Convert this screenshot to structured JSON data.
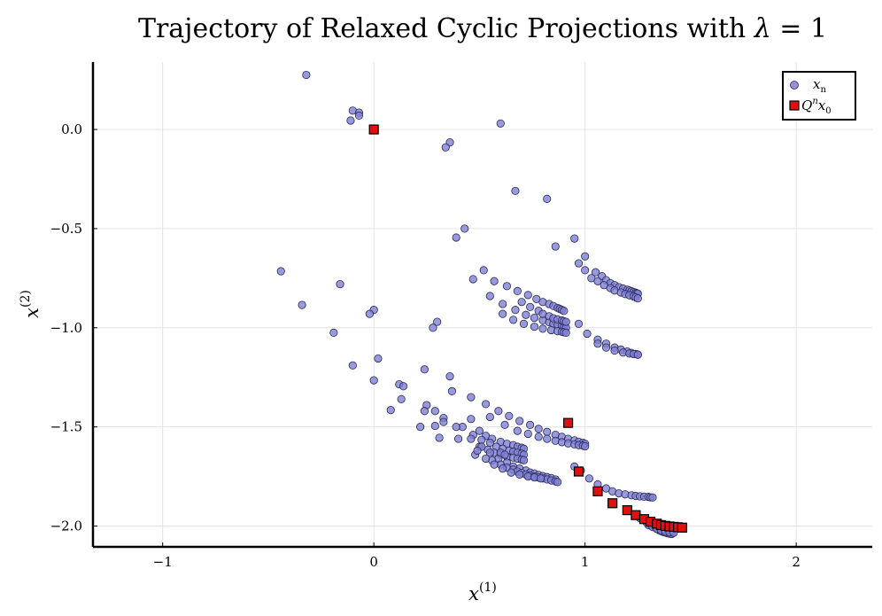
{
  "chart_data": {
    "type": "scatter",
    "title": "Trajectory of Relaxed Cyclic Projections with λ = 1",
    "title_main": "Trajectory of Relaxed Cyclic Projections with ",
    "title_lambda": "λ",
    "title_eq": " = 1",
    "xlabel": "x",
    "xlabel_sup": "(1)",
    "ylabel": "x",
    "ylabel_sup": "(2)",
    "xlim": [
      -1.33,
      2.36
    ],
    "ylim": [
      -2.105,
      0.34
    ],
    "grid": true,
    "legend_position": "top-right",
    "xticks": [
      -1,
      0,
      1,
      2
    ],
    "xtick_labels": [
      "−1",
      "0",
      "1",
      "2"
    ],
    "yticks": [
      0.0,
      -0.5,
      -1.0,
      -1.5,
      -2.0
    ],
    "ytick_labels": [
      "0.0",
      "−0.5",
      "−1.0",
      "−1.5",
      "−2.0"
    ],
    "series": [
      {
        "name": "x_n",
        "legend_label": "x",
        "legend_sub": "n",
        "marker": "circle",
        "color": "#7f7fd4",
        "edge": "#2a2a55",
        "points": [
          [
            -0.32,
            0.275
          ],
          [
            -0.1,
            0.095
          ],
          [
            -0.07,
            0.085
          ],
          [
            -0.11,
            0.045
          ],
          [
            -0.07,
            0.07
          ],
          [
            0.6,
            0.03
          ],
          [
            0.36,
            -0.065
          ],
          [
            0.34,
            -0.09
          ],
          [
            0.67,
            -0.31
          ],
          [
            0.82,
            -0.35
          ],
          [
            0.43,
            -0.5
          ],
          [
            0.39,
            -0.545
          ],
          [
            0.95,
            -0.55
          ],
          [
            0.86,
            -0.59
          ],
          [
            1.0,
            -0.64
          ],
          [
            0.97,
            -0.675
          ],
          [
            -0.44,
            -0.715
          ],
          [
            -0.16,
            -0.78
          ],
          [
            -0.34,
            -0.885
          ],
          [
            0.0,
            -0.91
          ],
          [
            -0.02,
            -0.93
          ],
          [
            0.3,
            -0.97
          ],
          [
            0.28,
            -1.0
          ],
          [
            -0.19,
            -1.025
          ],
          [
            0.02,
            -1.155
          ],
          [
            -0.1,
            -1.19
          ],
          [
            0.24,
            -1.21
          ],
          [
            0.0,
            -1.265
          ],
          [
            0.12,
            -1.285
          ],
          [
            0.14,
            -1.295
          ],
          [
            0.36,
            -1.245
          ],
          [
            0.37,
            -1.32
          ],
          [
            0.13,
            -1.36
          ],
          [
            0.25,
            -1.39
          ],
          [
            0.24,
            -1.42
          ],
          [
            0.08,
            -1.415
          ],
          [
            0.33,
            -1.455
          ],
          [
            0.33,
            -1.475
          ],
          [
            0.22,
            -1.5
          ],
          [
            0.29,
            -1.495
          ],
          [
            0.31,
            -1.555
          ],
          [
            1.0,
            -0.71
          ],
          [
            1.05,
            -0.72
          ],
          [
            1.08,
            -0.74
          ],
          [
            1.1,
            -0.76
          ],
          [
            1.12,
            -0.775
          ],
          [
            1.14,
            -0.785
          ],
          [
            1.16,
            -0.795
          ],
          [
            1.18,
            -0.802
          ],
          [
            1.2,
            -0.808
          ],
          [
            1.21,
            -0.812
          ],
          [
            1.22,
            -0.816
          ],
          [
            1.23,
            -0.82
          ],
          [
            1.24,
            -0.823
          ],
          [
            1.245,
            -0.826
          ],
          [
            1.25,
            -0.828
          ],
          [
            1.03,
            -0.75
          ],
          [
            1.06,
            -0.765
          ],
          [
            1.09,
            -0.785
          ],
          [
            1.12,
            -0.8
          ],
          [
            1.14,
            -0.812
          ],
          [
            1.17,
            -0.822
          ],
          [
            1.19,
            -0.83
          ],
          [
            1.21,
            -0.836
          ],
          [
            1.23,
            -0.842
          ],
          [
            1.24,
            -0.847
          ],
          [
            1.25,
            -0.852
          ],
          [
            0.52,
            -0.71
          ],
          [
            0.47,
            -0.755
          ],
          [
            0.57,
            -0.765
          ],
          [
            0.63,
            -0.79
          ],
          [
            0.68,
            -0.815
          ],
          [
            0.73,
            -0.835
          ],
          [
            0.77,
            -0.855
          ],
          [
            0.8,
            -0.87
          ],
          [
            0.83,
            -0.88
          ],
          [
            0.85,
            -0.89
          ],
          [
            0.87,
            -0.9
          ],
          [
            0.88,
            -0.905
          ],
          [
            0.89,
            -0.91
          ],
          [
            0.9,
            -0.915
          ],
          [
            0.55,
            -0.84
          ],
          [
            0.61,
            -0.88
          ],
          [
            0.67,
            -0.91
          ],
          [
            0.72,
            -0.935
          ],
          [
            0.76,
            -0.95
          ],
          [
            0.8,
            -0.962
          ],
          [
            0.83,
            -0.972
          ],
          [
            0.85,
            -0.98
          ],
          [
            0.87,
            -0.986
          ],
          [
            0.89,
            -0.991
          ],
          [
            0.9,
            -0.996
          ],
          [
            0.91,
            -1.0
          ],
          [
            0.7,
            -0.87
          ],
          [
            0.74,
            -0.895
          ],
          [
            0.78,
            -0.915
          ],
          [
            0.8,
            -0.93
          ],
          [
            0.83,
            -0.942
          ],
          [
            0.85,
            -0.952
          ],
          [
            0.87,
            -0.958
          ],
          [
            0.89,
            -0.963
          ],
          [
            0.9,
            -0.967
          ],
          [
            0.91,
            -0.97
          ],
          [
            0.61,
            -0.93
          ],
          [
            0.66,
            -0.96
          ],
          [
            0.71,
            -0.98
          ],
          [
            0.76,
            -0.995
          ],
          [
            0.8,
            -1.005
          ],
          [
            0.84,
            -1.012
          ],
          [
            0.87,
            -1.017
          ],
          [
            0.89,
            -1.02
          ],
          [
            0.9,
            -1.023
          ],
          [
            0.91,
            -1.025
          ],
          [
            0.97,
            -0.98
          ],
          [
            1.01,
            -1.03
          ],
          [
            1.06,
            -1.06
          ],
          [
            1.1,
            -1.08
          ],
          [
            1.14,
            -1.1
          ],
          [
            1.17,
            -1.11
          ],
          [
            1.2,
            -1.12
          ],
          [
            1.22,
            -1.127
          ],
          [
            1.24,
            -1.132
          ],
          [
            1.25,
            -1.135
          ],
          [
            1.06,
            -1.08
          ],
          [
            1.1,
            -1.1
          ],
          [
            1.14,
            -1.115
          ],
          [
            1.18,
            -1.125
          ],
          [
            1.21,
            -1.13
          ],
          [
            1.23,
            -1.133
          ],
          [
            1.25,
            -1.136
          ],
          [
            0.46,
            -1.35
          ],
          [
            0.53,
            -1.385
          ],
          [
            0.59,
            -1.42
          ],
          [
            0.64,
            -1.445
          ],
          [
            0.69,
            -1.47
          ],
          [
            0.74,
            -1.49
          ],
          [
            0.78,
            -1.51
          ],
          [
            0.82,
            -1.525
          ],
          [
            0.86,
            -1.54
          ],
          [
            0.89,
            -1.55
          ],
          [
            0.92,
            -1.56
          ],
          [
            0.95,
            -1.568
          ],
          [
            0.97,
            -1.575
          ],
          [
            0.99,
            -1.58
          ],
          [
            1.0,
            -1.585
          ],
          [
            0.55,
            -1.45
          ],
          [
            0.62,
            -1.49
          ],
          [
            0.68,
            -1.52
          ],
          [
            0.73,
            -1.535
          ],
          [
            0.78,
            -1.55
          ],
          [
            0.82,
            -1.56
          ],
          [
            0.86,
            -1.57
          ],
          [
            0.89,
            -1.577
          ],
          [
            0.92,
            -1.583
          ],
          [
            0.95,
            -1.588
          ],
          [
            0.97,
            -1.592
          ],
          [
            0.99,
            -1.595
          ],
          [
            1.0,
            -1.598
          ],
          [
            0.46,
            -1.46
          ],
          [
            0.5,
            -1.52
          ],
          [
            0.53,
            -1.545
          ],
          [
            0.56,
            -1.56
          ],
          [
            0.6,
            -1.575
          ],
          [
            0.63,
            -1.585
          ],
          [
            0.66,
            -1.592
          ],
          [
            0.68,
            -1.6
          ],
          [
            0.7,
            -1.605
          ],
          [
            0.71,
            -1.61
          ],
          [
            0.42,
            -1.5
          ],
          [
            0.47,
            -1.54
          ],
          [
            0.51,
            -1.565
          ],
          [
            0.55,
            -1.58
          ],
          [
            0.58,
            -1.6
          ],
          [
            0.61,
            -1.61
          ],
          [
            0.64,
            -1.62
          ],
          [
            0.66,
            -1.625
          ],
          [
            0.68,
            -1.63
          ],
          [
            0.7,
            -1.635
          ],
          [
            0.71,
            -1.64
          ],
          [
            0.5,
            -1.6
          ],
          [
            0.54,
            -1.615
          ],
          [
            0.57,
            -1.63
          ],
          [
            0.6,
            -1.64
          ],
          [
            0.63,
            -1.65
          ],
          [
            0.66,
            -1.655
          ],
          [
            0.68,
            -1.66
          ],
          [
            0.7,
            -1.665
          ],
          [
            0.71,
            -1.668
          ],
          [
            0.29,
            -1.42
          ],
          [
            0.39,
            -1.5
          ],
          [
            0.46,
            -1.56
          ],
          [
            0.51,
            -1.6
          ],
          [
            0.55,
            -1.63
          ],
          [
            0.59,
            -1.66
          ],
          [
            0.63,
            -1.68
          ],
          [
            0.66,
            -1.7
          ],
          [
            0.69,
            -1.71
          ],
          [
            0.72,
            -1.72
          ],
          [
            0.74,
            -1.73
          ],
          [
            0.76,
            -1.735
          ],
          [
            0.78,
            -1.742
          ],
          [
            0.8,
            -1.748
          ],
          [
            0.82,
            -1.753
          ],
          [
            0.84,
            -1.758
          ],
          [
            0.86,
            -1.765
          ],
          [
            0.56,
            -1.67
          ],
          [
            0.6,
            -1.69
          ],
          [
            0.63,
            -1.705
          ],
          [
            0.66,
            -1.715
          ],
          [
            0.68,
            -1.725
          ],
          [
            0.7,
            -1.732
          ],
          [
            0.72,
            -1.74
          ],
          [
            0.74,
            -1.745
          ],
          [
            0.76,
            -1.75
          ],
          [
            0.78,
            -1.755
          ],
          [
            0.8,
            -1.76
          ],
          [
            0.82,
            -1.765
          ],
          [
            0.84,
            -1.77
          ],
          [
            0.86,
            -1.775
          ],
          [
            0.87,
            -1.778
          ],
          [
            0.48,
            -1.64
          ],
          [
            0.53,
            -1.66
          ],
          [
            0.57,
            -1.69
          ],
          [
            0.61,
            -1.71
          ],
          [
            0.65,
            -1.73
          ],
          [
            0.69,
            -1.74
          ],
          [
            0.73,
            -1.75
          ],
          [
            0.76,
            -1.755
          ],
          [
            0.79,
            -1.76
          ],
          [
            0.4,
            -1.56
          ],
          [
            0.49,
            -1.62
          ],
          [
            0.6,
            -1.63
          ],
          [
            0.62,
            -1.64
          ],
          [
            0.95,
            -1.7
          ],
          [
            0.98,
            -1.72
          ],
          [
            1.02,
            -1.76
          ],
          [
            1.06,
            -1.79
          ],
          [
            1.1,
            -1.81
          ],
          [
            1.13,
            -1.825
          ],
          [
            1.16,
            -1.835
          ],
          [
            1.19,
            -1.84
          ],
          [
            1.22,
            -1.845
          ],
          [
            1.24,
            -1.848
          ],
          [
            1.26,
            -1.85
          ],
          [
            1.28,
            -1.852
          ],
          [
            1.3,
            -1.853
          ],
          [
            1.31,
            -1.855
          ],
          [
            1.32,
            -1.856
          ],
          [
            1.26,
            -1.96
          ],
          [
            1.29,
            -1.98
          ],
          [
            1.31,
            -1.995
          ],
          [
            1.33,
            -2.005
          ],
          [
            1.34,
            -2.013
          ],
          [
            1.35,
            -2.02
          ],
          [
            1.36,
            -2.025
          ],
          [
            1.37,
            -2.03
          ],
          [
            1.38,
            -2.033
          ],
          [
            1.39,
            -2.036
          ],
          [
            1.4,
            -2.038
          ],
          [
            1.41,
            -2.04
          ],
          [
            1.3,
            -1.995
          ],
          [
            1.32,
            -2.005
          ],
          [
            1.34,
            -2.015
          ],
          [
            1.36,
            -2.022
          ],
          [
            1.38,
            -2.028
          ],
          [
            1.4,
            -2.032
          ],
          [
            1.42,
            -2.034
          ]
        ]
      },
      {
        "name": "Q^n x_0",
        "legend_label": "Q",
        "legend_sup": "n",
        "legend_label2": "x",
        "legend_sub": "0",
        "marker": "square",
        "color": "#e01010",
        "edge": "#000000",
        "points": [
          [
            0.0,
            0.0
          ],
          [
            0.92,
            -1.48
          ],
          [
            0.97,
            -1.725
          ],
          [
            1.06,
            -1.825
          ],
          [
            1.13,
            -1.885
          ],
          [
            1.2,
            -1.92
          ],
          [
            1.24,
            -1.945
          ],
          [
            1.28,
            -1.965
          ],
          [
            1.31,
            -1.978
          ],
          [
            1.34,
            -1.988
          ],
          [
            1.36,
            -1.995
          ],
          [
            1.38,
            -1.999
          ],
          [
            1.4,
            -2.002
          ],
          [
            1.42,
            -2.004
          ],
          [
            1.44,
            -2.006
          ],
          [
            1.46,
            -2.008
          ]
        ]
      }
    ]
  }
}
